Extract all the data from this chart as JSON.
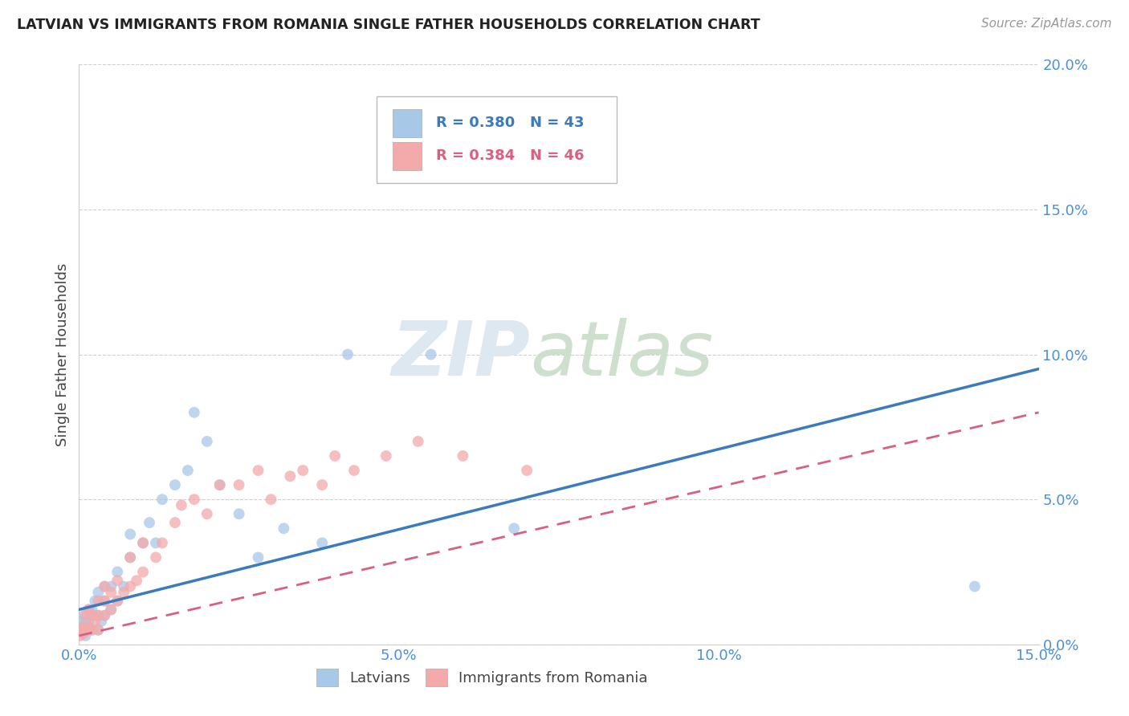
{
  "title": "LATVIAN VS IMMIGRANTS FROM ROMANIA SINGLE FATHER HOUSEHOLDS CORRELATION CHART",
  "source": "Source: ZipAtlas.com",
  "ylabel_label": "Single Father Households",
  "xlim": [
    0.0,
    0.15
  ],
  "ylim": [
    0.0,
    0.2
  ],
  "latvian_R": 0.38,
  "latvian_N": 43,
  "romania_R": 0.384,
  "romania_N": 46,
  "latvian_color": "#a8c8e8",
  "romania_color": "#f4aaaa",
  "latvian_line_color": "#3a7abf",
  "romania_line_color": "#d96080",
  "tick_color": "#4a90d9",
  "latvian_x": [
    0.0003,
    0.0005,
    0.0008,
    0.001,
    0.001,
    0.0012,
    0.0015,
    0.0015,
    0.002,
    0.002,
    0.0022,
    0.0025,
    0.003,
    0.003,
    0.003,
    0.0035,
    0.004,
    0.004,
    0.004,
    0.005,
    0.005,
    0.006,
    0.006,
    0.007,
    0.008,
    0.008,
    0.01,
    0.011,
    0.012,
    0.013,
    0.015,
    0.017,
    0.018,
    0.02,
    0.022,
    0.025,
    0.028,
    0.032,
    0.038,
    0.042,
    0.055,
    0.068,
    0.14
  ],
  "latvian_y": [
    0.005,
    0.008,
    0.01,
    0.003,
    0.008,
    0.005,
    0.008,
    0.012,
    0.005,
    0.012,
    0.01,
    0.015,
    0.005,
    0.01,
    0.018,
    0.008,
    0.01,
    0.015,
    0.02,
    0.012,
    0.02,
    0.015,
    0.025,
    0.02,
    0.03,
    0.038,
    0.035,
    0.042,
    0.035,
    0.05,
    0.055,
    0.06,
    0.08,
    0.07,
    0.055,
    0.045,
    0.03,
    0.04,
    0.035,
    0.1,
    0.1,
    0.04,
    0.02
  ],
  "romania_x": [
    0.0002,
    0.0004,
    0.0006,
    0.0008,
    0.001,
    0.001,
    0.0015,
    0.0015,
    0.002,
    0.002,
    0.0025,
    0.003,
    0.003,
    0.003,
    0.004,
    0.004,
    0.004,
    0.005,
    0.005,
    0.006,
    0.006,
    0.007,
    0.008,
    0.008,
    0.009,
    0.01,
    0.01,
    0.012,
    0.013,
    0.015,
    0.016,
    0.018,
    0.02,
    0.022,
    0.025,
    0.028,
    0.03,
    0.033,
    0.035,
    0.038,
    0.04,
    0.043,
    0.048,
    0.053,
    0.06,
    0.07
  ],
  "romania_y": [
    0.003,
    0.005,
    0.006,
    0.004,
    0.005,
    0.01,
    0.006,
    0.012,
    0.005,
    0.01,
    0.008,
    0.005,
    0.01,
    0.015,
    0.01,
    0.015,
    0.02,
    0.012,
    0.018,
    0.015,
    0.022,
    0.018,
    0.02,
    0.03,
    0.022,
    0.025,
    0.035,
    0.03,
    0.035,
    0.042,
    0.048,
    0.05,
    0.045,
    0.055,
    0.055,
    0.06,
    0.05,
    0.058,
    0.06,
    0.055,
    0.065,
    0.06,
    0.065,
    0.07,
    0.065,
    0.06
  ],
  "watermark_zip": "ZIP",
  "watermark_atlas": "atlas",
  "grid_color": "#d0d0d0",
  "background_color": "#ffffff",
  "lat_line_start_y": 0.012,
  "lat_line_end_y": 0.095,
  "rom_line_start_y": 0.003,
  "rom_line_end_y": 0.08
}
